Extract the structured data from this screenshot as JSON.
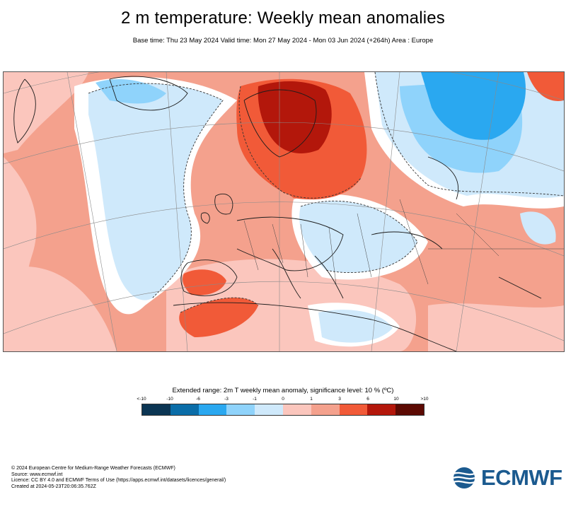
{
  "header": {
    "title": "2 m temperature: Weekly mean anomalies",
    "subtitle": "Base time: Thu 23 May 2024 Valid time: Mon 27 May 2024 - Mon 03 Jun 2024 (+264h) Area : Europe"
  },
  "map": {
    "area": "Europe",
    "field": "2m temperature weekly mean anomaly",
    "style": {
      "land_outline": "#222222",
      "graticule": "#888888",
      "significance_line": "dashed"
    }
  },
  "legend": {
    "title": "Extended range: 2m T weekly mean anomaly, significance level: 10 % (ºC)",
    "ticks": [
      "<-10",
      "-10",
      "-6",
      "-3",
      "-1",
      "0",
      "1",
      "3",
      "6",
      "10",
      ">10"
    ],
    "colors": [
      "#0b3553",
      "#0a6da8",
      "#2aa8f0",
      "#8fd3fb",
      "#cfe9fb",
      "#ffffff",
      "#fbc6bd",
      "#f4a18d",
      "#f15a38",
      "#b3170b",
      "#5c0a03"
    ]
  },
  "footer": {
    "lines": [
      "© 2024 European Centre for Medium-Range Weather Forecasts (ECMWF)",
      "Source: www.ecmwf.int",
      "Licence: CC BY 4.0 and ECMWF Terms of Use (https://apps.ecmwf.int/datasets/licences/general/)",
      "Created at 2024-05-23T20:06:35.762Z"
    ]
  },
  "logo": {
    "text": "ECMWF",
    "color": "#1b5a8f"
  }
}
